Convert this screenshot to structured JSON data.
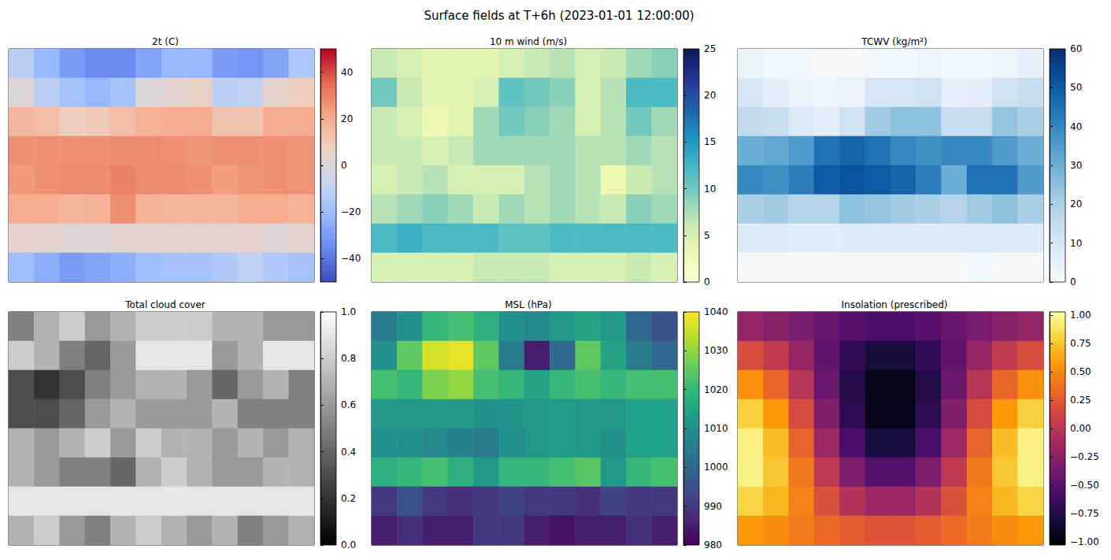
{
  "title": "Surface fields at T+6h (2023-01-01 12:00:00)",
  "chart_data": [
    {
      "type": "heatmap",
      "title": "2t (C)",
      "color": "coolwarm",
      "tick_labels": false,
      "clim": [
        -50,
        50
      ],
      "cticks": [
        {
          "value": -40,
          "label": "−40"
        },
        {
          "value": -20,
          "label": "−20"
        },
        0,
        20,
        40
      ],
      "cells": [
        [
          -12,
          -22,
          -30,
          -35,
          -35,
          -28,
          -22,
          -22,
          -30,
          -32,
          -28,
          -15
        ],
        [
          0,
          -12,
          -18,
          -22,
          -18,
          0,
          3,
          6,
          -12,
          -10,
          4,
          8
        ],
        [
          16,
          14,
          8,
          10,
          14,
          18,
          20,
          20,
          12,
          12,
          20,
          20
        ],
        [
          27,
          27,
          27,
          27,
          28,
          28,
          27,
          26,
          27,
          27,
          27,
          26
        ],
        [
          25,
          27,
          28,
          28,
          30,
          28,
          28,
          27,
          24,
          26,
          27,
          26
        ],
        [
          20,
          20,
          17,
          18,
          27,
          18,
          17,
          17,
          17,
          20,
          20,
          18
        ],
        [
          4,
          3,
          2,
          2,
          3,
          3,
          3,
          3,
          3,
          4,
          2,
          3
        ],
        [
          -20,
          -25,
          -30,
          -28,
          -25,
          -20,
          -18,
          -18,
          -15,
          -10,
          -15,
          -18
        ]
      ]
    },
    {
      "type": "heatmap",
      "title": "10 m wind (m/s)",
      "color": "YlGnBu",
      "tick_labels": false,
      "clim": [
        0,
        25
      ],
      "cticks": [
        0,
        5,
        10,
        15,
        20,
        25
      ],
      "cells": [
        [
          6,
          5,
          4,
          4,
          4,
          5,
          6,
          7,
          5,
          6,
          8,
          9
        ],
        [
          10,
          6,
          4,
          4,
          5,
          11,
          10,
          9,
          5,
          7,
          12,
          12
        ],
        [
          6,
          5,
          3,
          4,
          8,
          10,
          9,
          8,
          5,
          7,
          10,
          8
        ],
        [
          6,
          6,
          5,
          6,
          8,
          8,
          8,
          8,
          7,
          7,
          8,
          7
        ],
        [
          5,
          6,
          7,
          5,
          5,
          5,
          7,
          8,
          7,
          3,
          6,
          7
        ],
        [
          7,
          8,
          9,
          8,
          6,
          8,
          7,
          8,
          7,
          6,
          9,
          8
        ],
        [
          12,
          13,
          12,
          12,
          12,
          11,
          11,
          12,
          12,
          12,
          12,
          12
        ],
        [
          5,
          5,
          5,
          5,
          6,
          6,
          6,
          5,
          5,
          5,
          6,
          5
        ]
      ]
    },
    {
      "type": "heatmap",
      "title": "TCWV (kg/m²)",
      "color": "Blues",
      "tick_labels": false,
      "clim": [
        0,
        60
      ],
      "cticks": [
        0,
        10,
        20,
        30,
        40,
        50,
        60
      ],
      "cells": [
        [
          4,
          2,
          2,
          1,
          1,
          2,
          2,
          3,
          2,
          2,
          3,
          5
        ],
        [
          10,
          6,
          4,
          3,
          4,
          10,
          10,
          12,
          5,
          6,
          12,
          14
        ],
        [
          16,
          14,
          8,
          6,
          12,
          22,
          25,
          25,
          14,
          14,
          24,
          20
        ],
        [
          30,
          32,
          35,
          45,
          48,
          45,
          40,
          38,
          40,
          40,
          35,
          30
        ],
        [
          40,
          38,
          42,
          50,
          52,
          50,
          48,
          42,
          30,
          45,
          45,
          35
        ],
        [
          20,
          22,
          18,
          18,
          25,
          24,
          22,
          20,
          18,
          22,
          25,
          20
        ],
        [
          8,
          8,
          7,
          7,
          8,
          8,
          8,
          8,
          8,
          8,
          8,
          8
        ],
        [
          1,
          1,
          1,
          1,
          1,
          1,
          1,
          1,
          1,
          2,
          1,
          1
        ]
      ]
    },
    {
      "type": "heatmap",
      "title": "Total cloud cover",
      "color": "gray",
      "tick_labels": false,
      "clim": [
        0,
        1
      ],
      "cticks": [
        {
          "value": 0,
          "label": "0.0"
        },
        {
          "value": 0.2,
          "label": "0.2"
        },
        {
          "value": 0.4,
          "label": "0.4"
        },
        {
          "value": 0.6,
          "label": "0.6"
        },
        {
          "value": 0.8,
          "label": "0.8"
        },
        {
          "value": 1,
          "label": "1.0"
        }
      ],
      "cells": [
        [
          0.5,
          0.7,
          0.8,
          0.6,
          0.7,
          0.8,
          0.8,
          0.8,
          0.7,
          0.7,
          0.6,
          0.6
        ],
        [
          0.8,
          0.7,
          0.5,
          0.4,
          0.6,
          0.9,
          0.9,
          0.9,
          0.6,
          0.7,
          0.9,
          0.9
        ],
        [
          0.3,
          0.2,
          0.3,
          0.5,
          0.6,
          0.7,
          0.7,
          0.6,
          0.4,
          0.6,
          0.7,
          0.5
        ],
        [
          0.3,
          0.3,
          0.4,
          0.6,
          0.7,
          0.6,
          0.6,
          0.6,
          0.7,
          0.5,
          0.5,
          0.5
        ],
        [
          0.7,
          0.6,
          0.7,
          0.8,
          0.6,
          0.8,
          0.7,
          0.7,
          0.6,
          0.7,
          0.6,
          0.7
        ],
        [
          0.7,
          0.6,
          0.5,
          0.5,
          0.4,
          0.7,
          0.8,
          0.7,
          0.6,
          0.6,
          0.7,
          0.7
        ],
        [
          0.9,
          0.9,
          0.9,
          0.9,
          0.9,
          0.9,
          0.9,
          0.9,
          0.9,
          0.9,
          0.9,
          0.9
        ],
        [
          0.7,
          0.8,
          0.6,
          0.5,
          0.7,
          0.8,
          0.7,
          0.6,
          0.7,
          0.5,
          0.6,
          0.7
        ]
      ]
    },
    {
      "type": "heatmap",
      "title": "MSL (hPa)",
      "color": "viridis",
      "tick_labels": false,
      "clim": [
        980,
        1040
      ],
      "cticks": [
        980,
        990,
        1000,
        1010,
        1020,
        1030,
        1040
      ],
      "cells": [
        [
          1005,
          1010,
          1020,
          1022,
          1018,
          1010,
          1008,
          1012,
          1015,
          1012,
          1000,
          995
        ],
        [
          1010,
          1025,
          1036,
          1038,
          1025,
          1005,
          985,
          1000,
          1025,
          1015,
          1005,
          1000
        ],
        [
          1022,
          1020,
          1028,
          1030,
          1022,
          1020,
          1015,
          1020,
          1022,
          1020,
          1022,
          1022
        ],
        [
          1012,
          1012,
          1012,
          1012,
          1010,
          1011,
          1012,
          1013,
          1012,
          1012,
          1014,
          1014
        ],
        [
          1010,
          1010,
          1008,
          1007,
          1005,
          1010,
          1012,
          1013,
          1012,
          1010,
          1014,
          1014
        ],
        [
          1018,
          1020,
          1022,
          1018,
          1012,
          1020,
          1020,
          1022,
          1024,
          1012,
          1020,
          1022
        ],
        [
          990,
          995,
          990,
          988,
          990,
          992,
          990,
          990,
          988,
          992,
          990,
          990
        ],
        [
          985,
          988,
          985,
          985,
          990,
          990,
          985,
          983,
          985,
          985,
          988,
          985
        ]
      ]
    },
    {
      "type": "heatmap",
      "title": "Insolation (prescribed)",
      "color": "inferno",
      "tick_labels": false,
      "clim": [
        -1.03,
        1.03
      ],
      "cticks": [
        {
          "value": -1,
          "label": "−1.00"
        },
        {
          "value": -0.75,
          "label": "−0.75"
        },
        {
          "value": -0.5,
          "label": "−0.50"
        },
        {
          "value": -0.25,
          "label": "−0.25"
        },
        {
          "value": 0,
          "label": "0.00"
        },
        {
          "value": 0.25,
          "label": "0.25"
        },
        {
          "value": 0.5,
          "label": "0.50"
        },
        {
          "value": 0.75,
          "label": "0.75"
        },
        {
          "value": 1,
          "label": "1.00"
        }
      ],
      "cells": [
        [
          -0.21,
          -0.26,
          -0.34,
          -0.43,
          -0.51,
          -0.56,
          -0.56,
          -0.51,
          -0.43,
          -0.34,
          -0.26,
          -0.21
        ],
        [
          0.17,
          0.04,
          -0.19,
          -0.46,
          -0.69,
          -0.82,
          -0.82,
          -0.69,
          -0.46,
          -0.19,
          0.04,
          0.17
        ],
        [
          0.52,
          0.32,
          -0.02,
          -0.41,
          -0.76,
          -0.96,
          -0.96,
          -0.76,
          -0.41,
          -0.02,
          0.32,
          0.52
        ],
        [
          0.8,
          0.56,
          0.16,
          -0.31,
          -0.71,
          -0.95,
          -0.95,
          -0.71,
          -0.31,
          0.16,
          0.56,
          0.8
        ],
        [
          0.95,
          0.71,
          0.31,
          -0.16,
          -0.56,
          -0.8,
          -0.8,
          -0.56,
          -0.16,
          0.31,
          0.71,
          0.95
        ],
        [
          0.96,
          0.76,
          0.41,
          0.02,
          -0.32,
          -0.52,
          -0.52,
          -0.32,
          0.02,
          0.41,
          0.76,
          0.96
        ],
        [
          0.82,
          0.69,
          0.46,
          0.19,
          -0.04,
          -0.17,
          -0.17,
          -0.04,
          0.19,
          0.46,
          0.69,
          0.82
        ],
        [
          0.56,
          0.51,
          0.43,
          0.34,
          0.26,
          0.21,
          0.21,
          0.26,
          0.34,
          0.43,
          0.51,
          0.56
        ]
      ]
    }
  ]
}
